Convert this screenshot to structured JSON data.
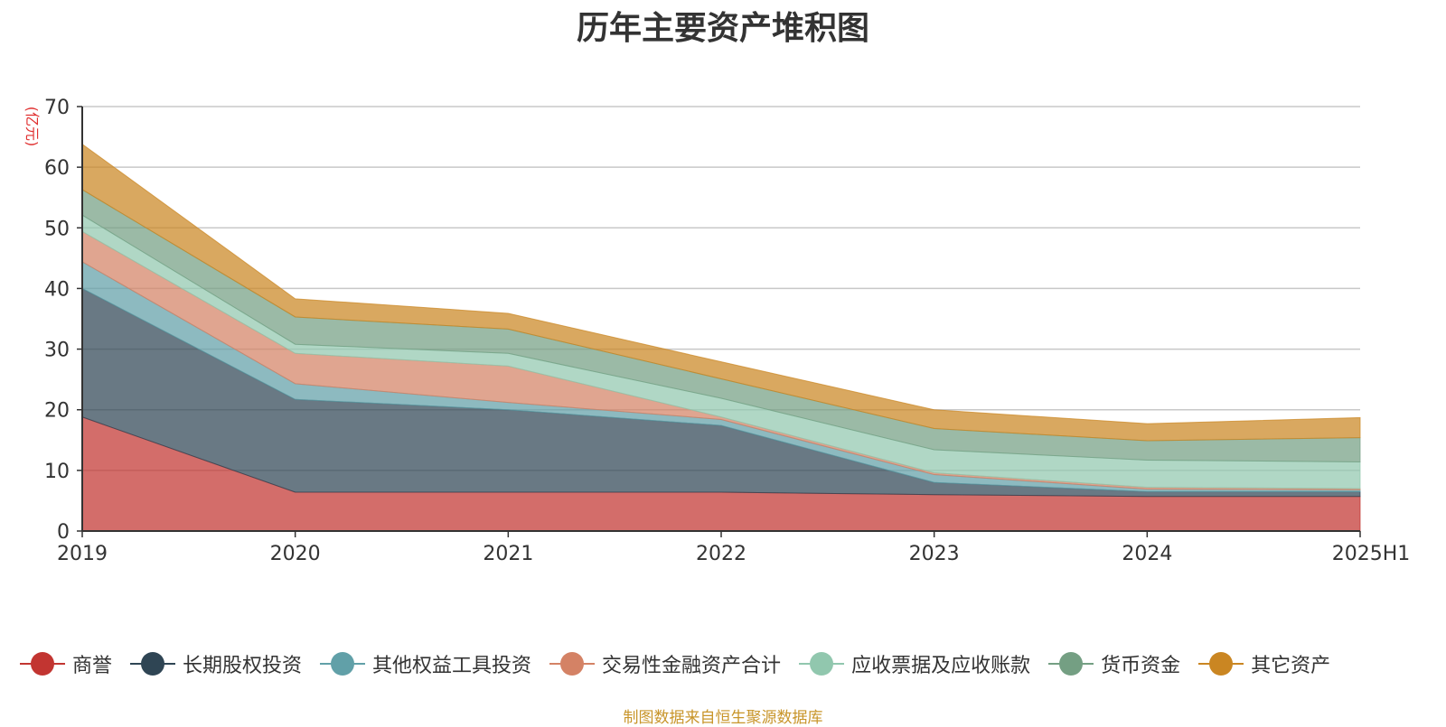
{
  "title": "历年主要资产堆积图",
  "source_note": "制图数据来自恒生聚源数据库",
  "chart_data": {
    "type": "area",
    "stacked": true,
    "title": "历年主要资产堆积图",
    "ylabel": "(亿元)",
    "xlabel": "",
    "categories": [
      "2019",
      "2020",
      "2021",
      "2022",
      "2023",
      "2024",
      "2025H1"
    ],
    "ylim": [
      0,
      70
    ],
    "yticks": [
      0,
      10,
      20,
      30,
      40,
      50,
      60,
      70
    ],
    "grid": true,
    "legend_position": "bottom",
    "series": [
      {
        "name": "商誉",
        "color": "#c23531",
        "values": [
          18.8,
          6.4,
          6.4,
          6.4,
          6.0,
          5.7,
          5.7
        ]
      },
      {
        "name": "长期股权投资",
        "color": "#2f4554",
        "values": [
          21.2,
          15.3,
          13.6,
          11.0,
          2.0,
          0.8,
          0.8
        ]
      },
      {
        "name": "其他权益工具投资",
        "color": "#61a0a8",
        "values": [
          4.4,
          2.6,
          1.2,
          1.0,
          1.3,
          0.4,
          0.3
        ]
      },
      {
        "name": "交易性金融资产合计",
        "color": "#d48265",
        "values": [
          5.0,
          5.0,
          6.0,
          0.4,
          0.3,
          0.3,
          0.2
        ]
      },
      {
        "name": "应收票据及应收账款",
        "color": "#91c7ae",
        "values": [
          2.7,
          1.5,
          2.1,
          3.1,
          3.8,
          4.5,
          4.4
        ]
      },
      {
        "name": "货币资金",
        "color": "#749f83",
        "values": [
          4.2,
          4.5,
          4.0,
          3.2,
          3.5,
          3.2,
          4.0
        ]
      },
      {
        "name": "其它资产",
        "color": "#ca8622",
        "values": [
          7.5,
          3.0,
          2.6,
          2.8,
          3.1,
          2.8,
          3.3
        ]
      }
    ]
  }
}
